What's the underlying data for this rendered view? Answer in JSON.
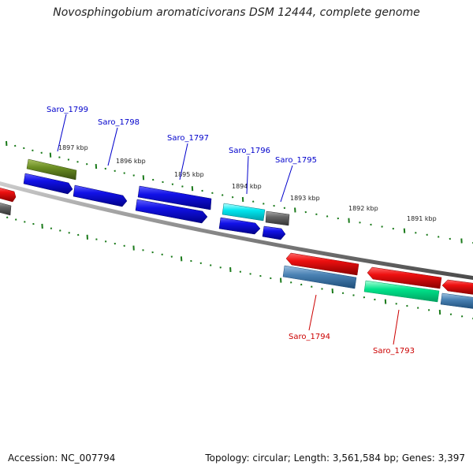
{
  "title": "Novosphingobium aromaticivorans DSM 12444, complete genome",
  "footer": {
    "accession": "Accession: NC_007794",
    "summary": "Topology: circular; Length: 3,561,584 bp; Genes: 3,397"
  },
  "colors": {
    "backbone": "#8a8a8a",
    "tick": "#1a7a1a",
    "forward_cds": "#1010e0",
    "reverse_cds": "#e81010",
    "forward_label": "#0000cc",
    "reverse_label": "#cc0000",
    "rna_cyan": "#00e5ee",
    "pseudo_grey": "#666666",
    "olive": "#6b8e23",
    "steel": "#4a82b4",
    "spring": "#00e38a"
  },
  "kbp_labels": [
    "1897 kbp",
    "1896 kbp",
    "1895 kbp",
    "1894 kbp",
    "1893 kbp",
    "1892 kbp",
    "1891 kbp"
  ],
  "gene_labels": [
    {
      "text": "Saro_1799",
      "strand": "forward"
    },
    {
      "text": "Saro_1798",
      "strand": "forward"
    },
    {
      "text": "Saro_1797",
      "strand": "forward"
    },
    {
      "text": "Saro_1796",
      "strand": "forward"
    },
    {
      "text": "Saro_1795",
      "strand": "forward"
    },
    {
      "text": "Saro_1794",
      "strand": "reverse"
    },
    {
      "text": "Saro_1793",
      "strand": "reverse"
    }
  ]
}
